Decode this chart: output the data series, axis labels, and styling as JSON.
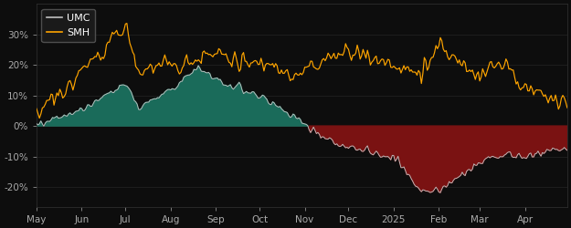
{
  "background_color": "#0d0d0d",
  "axes_background": "#0d0d0d",
  "umc_color": "#c0c0c0",
  "smh_color": "#FFA500",
  "fill_positive_color": "#1a6b5a",
  "fill_negative_color": "#7a1212",
  "legend_bg": "#1c1c1c",
  "legend_edge": "#555555",
  "tick_color": "#aaaaaa",
  "ylim": [
    -0.265,
    0.4
  ],
  "yticks": [
    -0.2,
    -0.1,
    0.0,
    0.1,
    0.2,
    0.3
  ],
  "ytick_labels": [
    "-20%",
    "-10%",
    "0%",
    "10%",
    "20%",
    "30%"
  ],
  "xlabels": [
    "May",
    "Jun",
    "Jul",
    "Aug",
    "Sep",
    "Oct",
    "Nov",
    "Dec",
    "2025",
    "Feb",
    "Mar",
    "Apr"
  ]
}
